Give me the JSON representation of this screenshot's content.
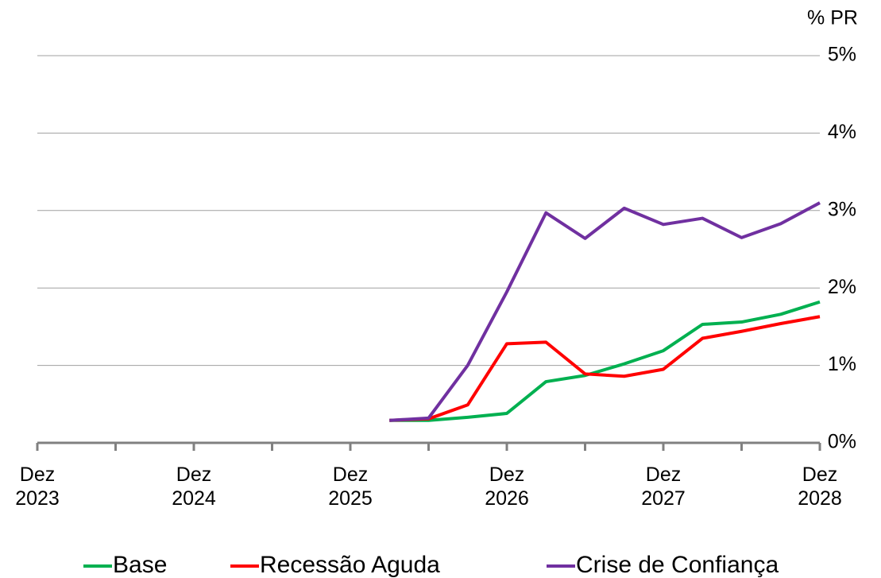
{
  "chart_data": {
    "type": "line",
    "y_unit_label": "% PR",
    "categories": [
      "Dez 2023",
      null,
      null,
      null,
      "Dez 2024",
      null,
      null,
      null,
      "Dez 2025",
      null,
      null,
      null,
      "Dez 2026",
      null,
      null,
      null,
      "Dez 2027",
      null,
      null,
      null,
      "Dez 2028"
    ],
    "series": [
      {
        "name": "Base",
        "color": "#00b050",
        "values": [
          null,
          null,
          null,
          null,
          null,
          null,
          null,
          null,
          null,
          0.29,
          0.29,
          0.33,
          0.38,
          0.79,
          0.87,
          1.02,
          1.19,
          1.53,
          1.56,
          1.66,
          1.82
        ]
      },
      {
        "name": "Recessão Aguda",
        "color": "#ff0000",
        "values": [
          null,
          null,
          null,
          null,
          null,
          null,
          null,
          null,
          null,
          0.29,
          0.31,
          0.49,
          1.28,
          1.3,
          0.89,
          0.86,
          0.95,
          1.35,
          1.44,
          1.54,
          1.63
        ]
      },
      {
        "name": "Crise de Confiança",
        "color": "#7030a0",
        "values": [
          null,
          null,
          null,
          null,
          null,
          null,
          null,
          null,
          null,
          0.29,
          0.32,
          1.0,
          1.95,
          2.97,
          2.64,
          3.03,
          2.82,
          2.9,
          2.65,
          2.83,
          3.1
        ]
      }
    ],
    "ylim": [
      0,
      5
    ],
    "yticks": [
      {
        "value": 0,
        "label": "0%"
      },
      {
        "value": 1,
        "label": "1%"
      },
      {
        "value": 2,
        "label": "2%"
      },
      {
        "value": 3,
        "label": "3%"
      },
      {
        "value": 4,
        "label": "4%"
      },
      {
        "value": 5,
        "label": "5%"
      }
    ],
    "grid": true,
    "legend": "bottom"
  }
}
